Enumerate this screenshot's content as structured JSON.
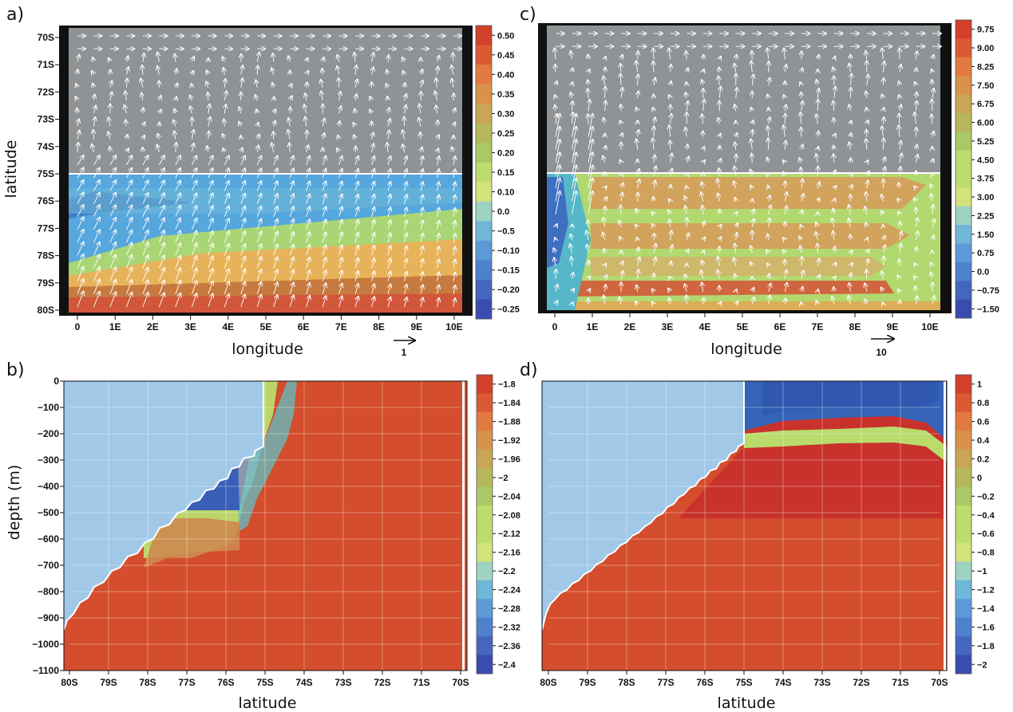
{
  "chart_data": [
    {
      "panel": "a)",
      "type": "heatmap",
      "xlabel": "longitude",
      "ylabel": "latitude",
      "x_ticks": [
        "0",
        "1E",
        "2E",
        "3E",
        "4E",
        "5E",
        "6E",
        "7E",
        "8E",
        "9E",
        "10E"
      ],
      "y_ticks": [
        "70S",
        "71S",
        "72S",
        "73S",
        "74S",
        "75S",
        "76S",
        "77S",
        "78S",
        "79S",
        "80S"
      ],
      "colorbar": [
        "0.50",
        "0.45",
        "0.40",
        "0.35",
        "0.30",
        "0.25",
        "0.20",
        "0.15",
        "0.10",
        "0.0",
        "−0.5",
        "−0.10",
        "−0.15",
        "−0.20",
        "−0.25"
      ],
      "vector_reference": "1",
      "masked_region": {
        "lat_from": 70,
        "lat_to": 75,
        "color": "#8f9396"
      },
      "field": [
        {
          "lat_from": 75,
          "lat_to": 76,
          "level": "0.0"
        },
        {
          "lat_from": 76,
          "lat_to": 77,
          "level": "0.0"
        },
        {
          "lat_from": 77,
          "lat_to": 78,
          "level": "0.10"
        },
        {
          "lat_from": 78,
          "lat_to": 79,
          "level": "0.20"
        },
        {
          "lat_from": 79,
          "lat_to": 80,
          "level": "0.35"
        }
      ]
    },
    {
      "panel": "c)",
      "type": "heatmap",
      "xlabel": "longitude",
      "ylabel": "",
      "x_ticks": [
        "0",
        "1E",
        "2E",
        "3E",
        "4E",
        "5E",
        "6E",
        "7E",
        "8E",
        "9E",
        "10E"
      ],
      "colorbar": [
        "9.75",
        "9.00",
        "8.25",
        "7.50",
        "6.75",
        "6.00",
        "5.25",
        "4.50",
        "3.75",
        "3.00",
        "2.25",
        "1.50",
        "0.75",
        "0.0",
        "−0.75",
        "−1.50"
      ],
      "vector_reference": "10",
      "masked_region": {
        "lat_from": 70,
        "lat_to": 75,
        "color": "#8f9396"
      },
      "field": [
        {
          "lat_from": 75,
          "lat_to": 76,
          "level": "5.25"
        },
        {
          "lat_from": 76,
          "lat_to": 77,
          "level": "6.00"
        },
        {
          "lat_from": 77,
          "lat_to": 78,
          "level": "5.25"
        },
        {
          "lat_from": 78,
          "lat_to": 79,
          "level": "4.50"
        },
        {
          "lat_from": 79,
          "lat_to": 80,
          "level": "6.75"
        }
      ]
    },
    {
      "panel": "b)",
      "type": "heatmap",
      "xlabel": "latitude",
      "ylabel": "depth (m)",
      "x_ticks": [
        "80S",
        "79S",
        "78S",
        "77S",
        "76S",
        "75S",
        "74S",
        "73S",
        "72S",
        "71S",
        "70S"
      ],
      "y_ticks": [
        "0",
        "−100",
        "−200",
        "−300",
        "−400",
        "−500",
        "−600",
        "−700",
        "−800",
        "−900",
        "−1000",
        "−1100"
      ],
      "colorbar": [
        "−1.8",
        "−1.84",
        "−1.88",
        "−1.92",
        "−1.96",
        "−2",
        "−2.04",
        "−2.08",
        "−2.12",
        "−2.16",
        "−2.2",
        "−2.24",
        "−2.28",
        "−2.32",
        "−2.36",
        "−2.4"
      ],
      "ice_shelf": {
        "lat_from": 80,
        "lat_to": 75,
        "base_depth_at_80S": -1000,
        "base_depth_at_75S": -240
      },
      "dominant_level": "−1.8",
      "cold_pocket_level": "−2.36",
      "ylim": [
        -1100,
        0
      ]
    },
    {
      "panel": "d)",
      "type": "heatmap",
      "xlabel": "latitude",
      "ylabel": "",
      "x_ticks": [
        "80S",
        "79S",
        "78S",
        "77S",
        "76S",
        "75S",
        "74S",
        "73S",
        "72S",
        "71S",
        "70S"
      ],
      "colorbar": [
        "1",
        "0.8",
        "0.6",
        "0.4",
        "0.2",
        "0",
        "−0.2",
        "−0.4",
        "−0.6",
        "−0.8",
        "−1",
        "−1.2",
        "−1.4",
        "−1.6",
        "−1.8",
        "−2"
      ],
      "ice_shelf": {
        "lat_from": 80,
        "lat_to": 75,
        "base_depth_at_80S": -1000,
        "base_depth_at_75S": -240
      },
      "surface_layer_level": "−1.4",
      "deep_level": "1",
      "ylim": [
        -1100,
        0
      ]
    }
  ]
}
